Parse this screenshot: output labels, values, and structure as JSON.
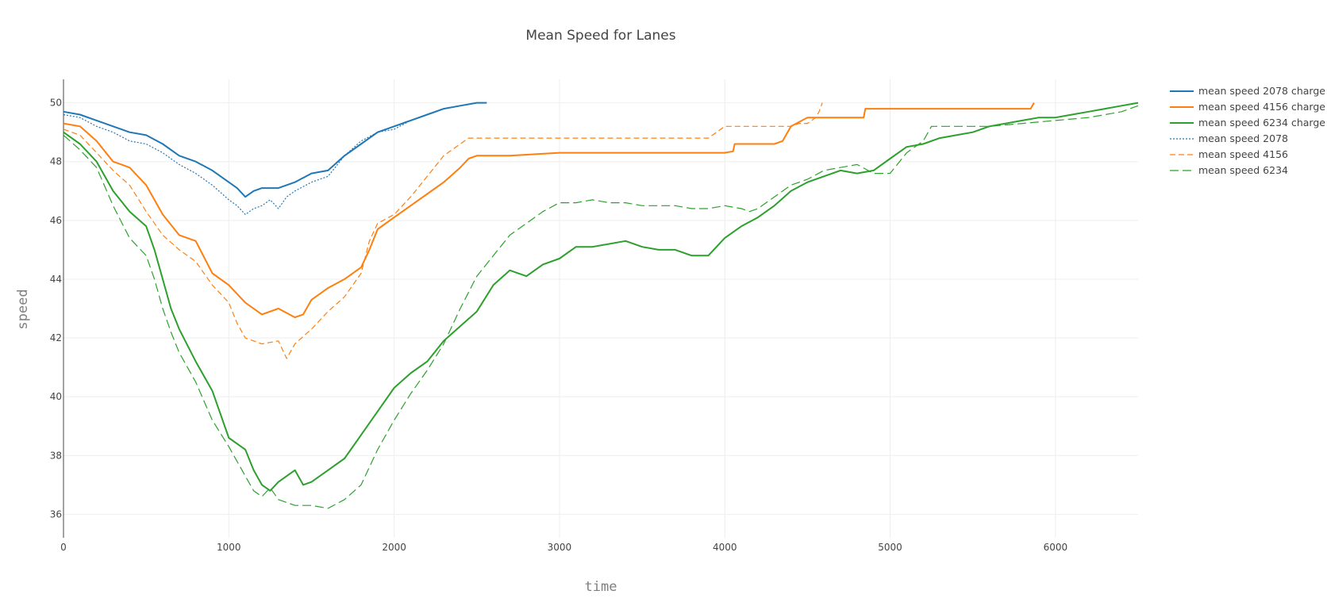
{
  "chart_data": {
    "type": "line",
    "title": "Mean Speed for Lanes",
    "xlabel": "time",
    "ylabel": "speed",
    "xlim": [
      0,
      6500
    ],
    "ylim": [
      35.2,
      50.8
    ],
    "xticks": [
      0,
      1000,
      2000,
      3000,
      4000,
      5000,
      6000
    ],
    "yticks": [
      36,
      38,
      40,
      42,
      44,
      46,
      48,
      50
    ],
    "grid": true,
    "legend_position": "top-right",
    "series": [
      {
        "name": "mean speed 2078 charge",
        "color": "#1f77b4",
        "dash": "solid",
        "x": [
          0,
          100,
          200,
          300,
          400,
          500,
          600,
          700,
          800,
          900,
          1000,
          1050,
          1100,
          1150,
          1200,
          1300,
          1400,
          1500,
          1600,
          1700,
          1800,
          1900,
          2000,
          2100,
          2200,
          2300,
          2400,
          2500,
          2560
        ],
        "y": [
          49.7,
          49.6,
          49.4,
          49.2,
          49.0,
          48.9,
          48.6,
          48.2,
          48.0,
          47.7,
          47.3,
          47.1,
          46.8,
          47.0,
          47.1,
          47.1,
          47.3,
          47.6,
          47.7,
          48.2,
          48.6,
          49.0,
          49.2,
          49.4,
          49.6,
          49.8,
          49.9,
          50.0,
          50.0
        ]
      },
      {
        "name": "mean speed 4156 charge",
        "color": "#ff7f0e",
        "dash": "solid",
        "x": [
          0,
          100,
          200,
          300,
          400,
          500,
          600,
          700,
          800,
          900,
          1000,
          1100,
          1200,
          1300,
          1400,
          1450,
          1500,
          1600,
          1700,
          1800,
          1850,
          1900,
          2000,
          2100,
          2200,
          2300,
          2400,
          2450,
          2500,
          2700,
          3000,
          3500,
          4000,
          4050,
          4060,
          4300,
          4350,
          4400,
          4500,
          4800,
          4840,
          4850,
          5300,
          5800,
          5850,
          5870
        ],
        "y": [
          49.3,
          49.2,
          48.7,
          48.0,
          47.8,
          47.2,
          46.2,
          45.5,
          45.3,
          44.2,
          43.8,
          43.2,
          42.8,
          43.0,
          42.7,
          42.8,
          43.3,
          43.7,
          44.0,
          44.4,
          45.0,
          45.7,
          46.1,
          46.5,
          46.9,
          47.3,
          47.8,
          48.1,
          48.2,
          48.2,
          48.3,
          48.3,
          48.3,
          48.35,
          48.6,
          48.6,
          48.7,
          49.2,
          49.5,
          49.5,
          49.5,
          49.8,
          49.8,
          49.8,
          49.8,
          50.0
        ]
      },
      {
        "name": "mean speed 6234 charge",
        "color": "#2ca02c",
        "dash": "solid",
        "x": [
          0,
          100,
          200,
          300,
          400,
          500,
          550,
          600,
          650,
          700,
          800,
          900,
          1000,
          1100,
          1150,
          1200,
          1250,
          1300,
          1400,
          1450,
          1500,
          1600,
          1700,
          1800,
          1900,
          2000,
          2100,
          2200,
          2300,
          2400,
          2500,
          2600,
          2700,
          2800,
          2900,
          3000,
          3100,
          3200,
          3400,
          3500,
          3600,
          3700,
          3800,
          3900,
          4000,
          4050,
          4100,
          4200,
          4300,
          4400,
          4500,
          4600,
          4700,
          4800,
          4900,
          5000,
          5100,
          5200,
          5300,
          5400,
          5500,
          5600,
          5700,
          5800,
          5900,
          6000,
          6100,
          6200,
          6300,
          6400,
          6500
        ],
        "y": [
          49.0,
          48.6,
          48.0,
          47.0,
          46.3,
          45.8,
          45.0,
          44.0,
          43.0,
          42.3,
          41.2,
          40.2,
          38.6,
          38.2,
          37.5,
          37.0,
          36.8,
          37.1,
          37.5,
          37.0,
          37.1,
          37.5,
          37.9,
          38.7,
          39.5,
          40.3,
          40.8,
          41.2,
          41.9,
          42.4,
          42.9,
          43.8,
          44.3,
          44.1,
          44.5,
          44.7,
          45.1,
          45.1,
          45.3,
          45.1,
          45.0,
          45.0,
          44.8,
          44.8,
          45.4,
          45.6,
          45.8,
          46.1,
          46.5,
          47.0,
          47.3,
          47.5,
          47.7,
          47.6,
          47.7,
          48.1,
          48.5,
          48.6,
          48.8,
          48.9,
          49.0,
          49.2,
          49.3,
          49.4,
          49.5,
          49.5,
          49.6,
          49.7,
          49.8,
          49.9,
          50.0
        ]
      },
      {
        "name": "mean speed 2078",
        "color": "#1f77b4",
        "dash": "dot",
        "x": [
          0,
          100,
          200,
          300,
          400,
          500,
          600,
          700,
          800,
          900,
          1000,
          1050,
          1100,
          1150,
          1200,
          1250,
          1300,
          1350,
          1400,
          1500,
          1600,
          1700,
          1800,
          1900,
          2000,
          2100,
          2200,
          2300,
          2400,
          2500,
          2560
        ],
        "y": [
          49.6,
          49.5,
          49.2,
          49.0,
          48.7,
          48.6,
          48.3,
          47.9,
          47.6,
          47.2,
          46.7,
          46.5,
          46.2,
          46.4,
          46.5,
          46.7,
          46.4,
          46.8,
          47.0,
          47.3,
          47.5,
          48.2,
          48.7,
          49.0,
          49.1,
          49.4,
          49.6,
          49.8,
          49.9,
          50.0,
          50.0
        ]
      },
      {
        "name": "mean speed 4156",
        "color": "#ff7f0e",
        "dash": "dash",
        "x": [
          0,
          100,
          200,
          300,
          400,
          500,
          600,
          700,
          800,
          900,
          1000,
          1050,
          1100,
          1200,
          1300,
          1350,
          1400,
          1500,
          1600,
          1700,
          1800,
          1850,
          1900,
          2000,
          2100,
          2200,
          2300,
          2400,
          2450,
          2500,
          2700,
          3000,
          3500,
          3900,
          3950,
          4000,
          4300,
          4400,
          4450,
          4500,
          4550,
          4570,
          4590
        ],
        "y": [
          49.1,
          48.9,
          48.3,
          47.7,
          47.2,
          46.3,
          45.5,
          45.0,
          44.6,
          43.8,
          43.2,
          42.5,
          42.0,
          41.8,
          41.9,
          41.3,
          41.8,
          42.3,
          42.9,
          43.4,
          44.2,
          45.3,
          45.9,
          46.2,
          46.8,
          47.5,
          48.2,
          48.6,
          48.8,
          48.8,
          48.8,
          48.8,
          48.8,
          48.8,
          49.0,
          49.2,
          49.2,
          49.2,
          49.3,
          49.3,
          49.5,
          49.7,
          50.0
        ]
      },
      {
        "name": "mean speed 6234",
        "color": "#2ca02c",
        "dash": "longdash",
        "x": [
          0,
          100,
          200,
          300,
          400,
          500,
          550,
          600,
          650,
          700,
          800,
          900,
          1000,
          1100,
          1150,
          1200,
          1250,
          1300,
          1400,
          1500,
          1600,
          1700,
          1800,
          1900,
          2000,
          2100,
          2200,
          2300,
          2400,
          2500,
          2600,
          2700,
          2800,
          2900,
          3000,
          3100,
          3200,
          3300,
          3400,
          3500,
          3600,
          3700,
          3800,
          3900,
          4000,
          4100,
          4150,
          4200,
          4300,
          4400,
          4500,
          4600,
          4700,
          4800,
          4900,
          5000,
          5100,
          5200,
          5250,
          5400,
          5600,
          5800,
          6000,
          6200,
          6400,
          6500
        ],
        "y": [
          48.9,
          48.4,
          47.8,
          46.5,
          45.4,
          44.8,
          44.0,
          43.0,
          42.2,
          41.5,
          40.5,
          39.2,
          38.3,
          37.3,
          36.8,
          36.6,
          36.9,
          36.5,
          36.3,
          36.3,
          36.2,
          36.5,
          37.0,
          38.2,
          39.2,
          40.1,
          40.9,
          41.8,
          43.0,
          44.1,
          44.8,
          45.5,
          45.9,
          46.3,
          46.6,
          46.6,
          46.7,
          46.6,
          46.6,
          46.5,
          46.5,
          46.5,
          46.4,
          46.4,
          46.5,
          46.4,
          46.3,
          46.4,
          46.8,
          47.2,
          47.4,
          47.7,
          47.8,
          47.9,
          47.6,
          47.6,
          48.3,
          48.7,
          49.2,
          49.2,
          49.2,
          49.3,
          49.4,
          49.5,
          49.7,
          49.9
        ]
      }
    ]
  }
}
